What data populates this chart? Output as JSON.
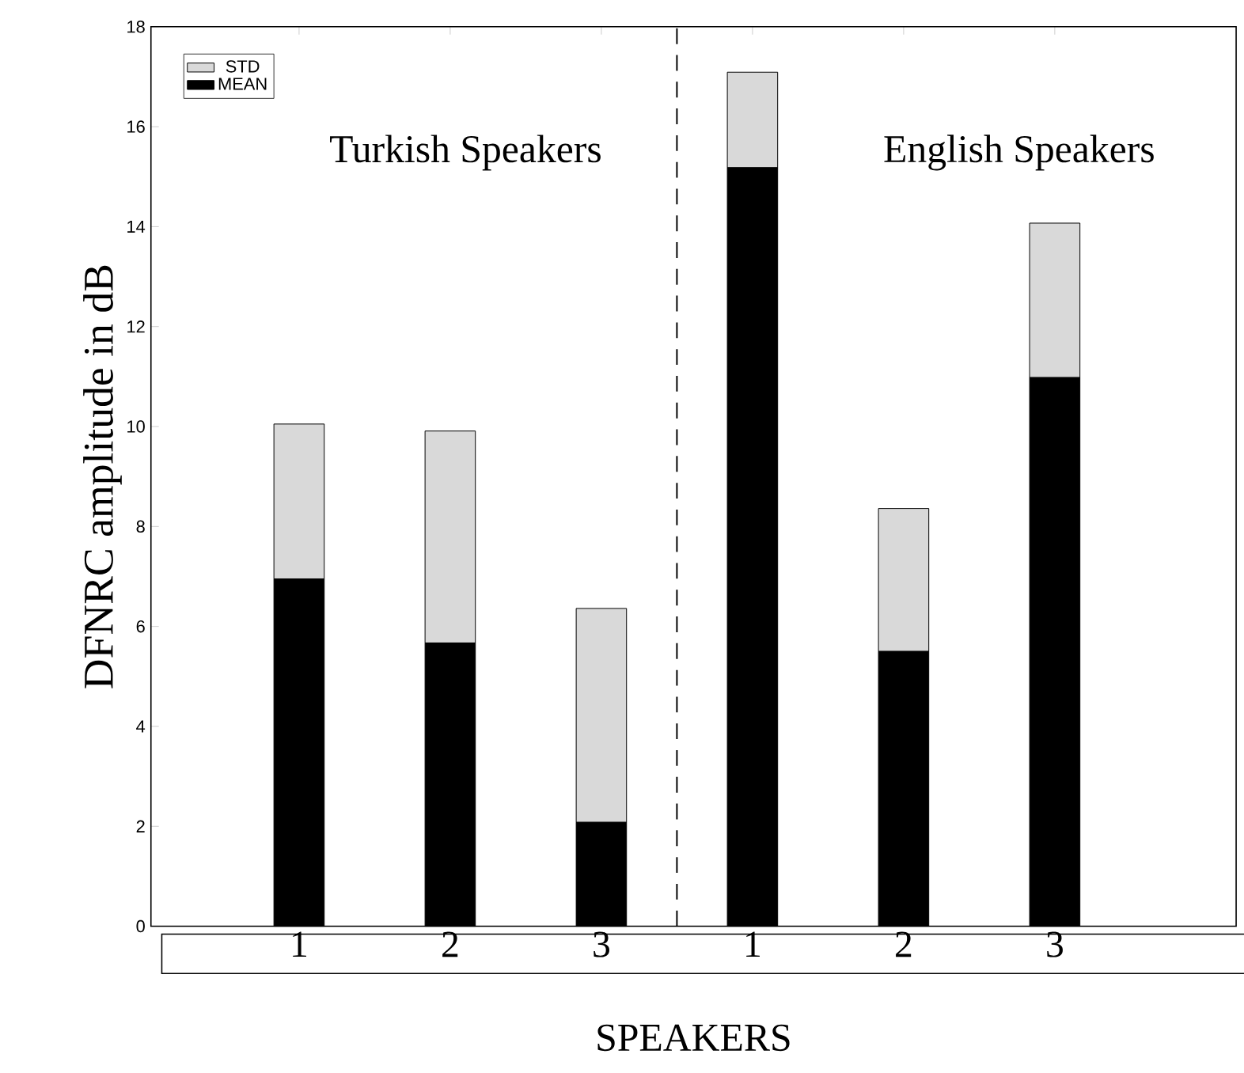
{
  "chart_data": {
    "type": "bar",
    "stacked": true,
    "xlabel": "SPEAKERS",
    "ylabel": "DFNRC amplitude in dB",
    "categories": [
      "1",
      "2",
      "3",
      "1",
      "2",
      "3"
    ],
    "series": [
      {
        "name": "MEAN",
        "color": "#000000",
        "values": [
          6.95,
          5.67,
          2.08,
          15.18,
          5.5,
          10.98
        ]
      },
      {
        "name": "STD",
        "color": "#d9d9d9",
        "values": [
          3.1,
          4.24,
          4.28,
          1.91,
          2.86,
          3.09
        ]
      }
    ],
    "ylim": [
      0,
      18
    ],
    "yticks": [
      0,
      2,
      4,
      6,
      8,
      10,
      12,
      14,
      16,
      18
    ],
    "annotations": [
      "Turkish Speakers",
      "English Speakers"
    ],
    "legend": "top left",
    "grid": false
  }
}
